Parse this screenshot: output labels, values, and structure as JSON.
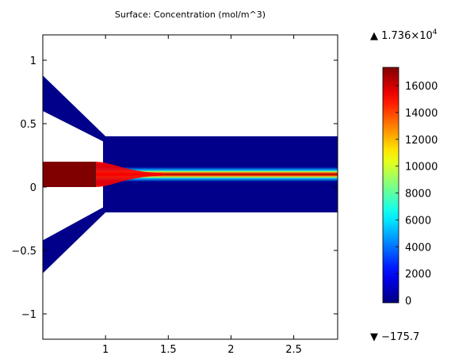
{
  "chart_data": {
    "type": "heatmap",
    "title": "Surface: Concentration (mol/m^3)",
    "xlim": [
      0.5,
      2.85
    ],
    "ylim": [
      -1.2,
      1.2
    ],
    "x_ticks": [
      1,
      1.5,
      2,
      2.5
    ],
    "x_tick_labels": [
      "1",
      "1.5",
      "2",
      "2.5"
    ],
    "y_ticks": [
      1,
      0.5,
      0,
      -0.5,
      -1
    ],
    "y_tick_labels": [
      "1",
      "0.5",
      "0",
      "−0.5",
      "−1"
    ],
    "colorbar": {
      "colormap": "jet",
      "range": [
        -175.7,
        17360
      ],
      "ticks": [
        0,
        2000,
        4000,
        6000,
        8000,
        10000,
        12000,
        14000,
        16000
      ],
      "tick_labels": [
        "0",
        "2000",
        "4000",
        "6000",
        "8000",
        "10000",
        "12000",
        "14000",
        "16000"
      ]
    },
    "max_label": "▲ 1.736×10",
    "max_exponent": "4",
    "min_label": "▼ −175.7",
    "domain_regions": {
      "main_channel": {
        "x": [
          1.0,
          2.85
        ],
        "y": [
          -0.2,
          0.4
        ]
      },
      "inlet_top_channel": {
        "left_y_range": [
          0.6,
          0.88
        ],
        "joins_at_x": 1.0
      },
      "inlet_bottom_channel": {
        "left_y_range": [
          -0.68,
          -0.42
        ],
        "joins_at_x": 1.0
      },
      "inlet_center_channel": {
        "x": [
          0.5,
          0.92
        ],
        "y": [
          0.0,
          0.2
        ],
        "concentration": 17360
      }
    },
    "background_concentration": 0,
    "jet_centerline_y": 0.1
  }
}
